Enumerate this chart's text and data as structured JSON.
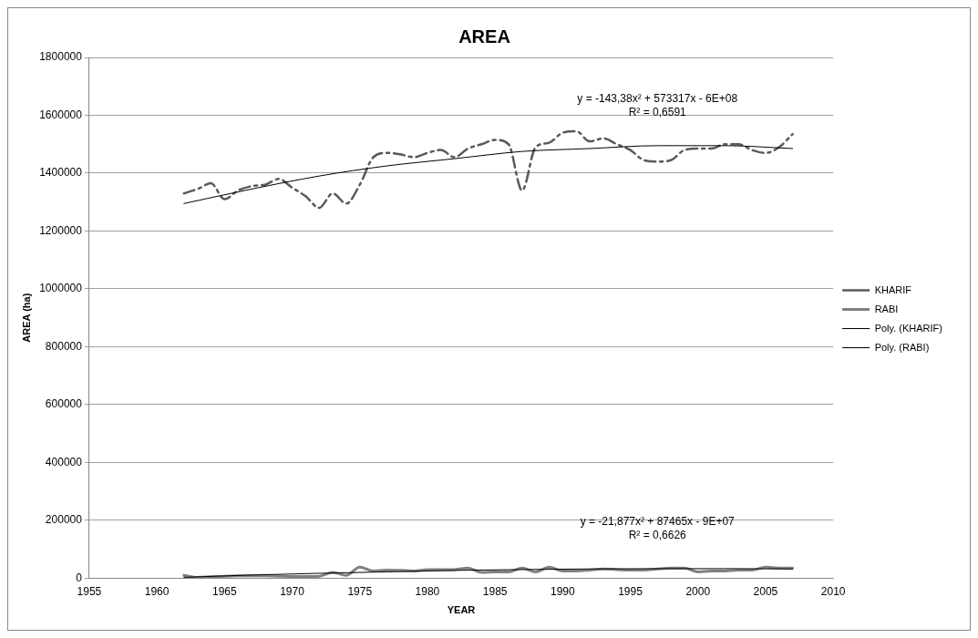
{
  "chart_data": {
    "type": "line",
    "title": "AREA",
    "xlabel": "YEAR",
    "ylabel": "AREA (ha)",
    "xlim": [
      1955,
      2010
    ],
    "xticks": [
      1955,
      1960,
      1965,
      1970,
      1975,
      1980,
      1985,
      1990,
      1995,
      2000,
      2005,
      2010
    ],
    "ylim": [
      0,
      1800000
    ],
    "yticks": [
      0,
      200000,
      400000,
      600000,
      800000,
      1000000,
      1200000,
      1400000,
      1600000,
      1800000
    ],
    "grid": "y",
    "legend": "right",
    "marker": "none",
    "x": [
      1962,
      1963,
      1964,
      1965,
      1966,
      1967,
      1968,
      1969,
      1970,
      1971,
      1972,
      1973,
      1974,
      1975,
      1976,
      1977,
      1978,
      1979,
      1980,
      1981,
      1982,
      1983,
      1984,
      1985,
      1986,
      1987,
      1988,
      1989,
      1990,
      1991,
      1992,
      1993,
      1994,
      1995,
      1996,
      1997,
      1998,
      1999,
      2000,
      2001,
      2002,
      2003,
      2004,
      2005,
      2006,
      2007
    ],
    "series": [
      {
        "name": "KHARIF",
        "color": "#595959",
        "line_style": "dashed",
        "values": [
          1330000,
          1345000,
          1365000,
          1310000,
          1340000,
          1355000,
          1360000,
          1380000,
          1350000,
          1320000,
          1280000,
          1330000,
          1295000,
          1360000,
          1455000,
          1470000,
          1465000,
          1455000,
          1470000,
          1480000,
          1455000,
          1485000,
          1500000,
          1515000,
          1500000,
          1340000,
          1490000,
          1505000,
          1540000,
          1545000,
          1510000,
          1520000,
          1500000,
          1480000,
          1445000,
          1440000,
          1445000,
          1480000,
          1485000,
          1485000,
          1500000,
          1500000,
          1480000,
          1470000,
          1490000,
          1535000
        ]
      },
      {
        "name": "RABI",
        "color": "#808080",
        "line_style": "solid",
        "values": [
          10000,
          3000,
          5000,
          7000,
          8000,
          8000,
          8000,
          7000,
          6000,
          6000,
          7000,
          20000,
          10000,
          38000,
          25000,
          28000,
          27000,
          25000,
          30000,
          30000,
          30000,
          35000,
          20000,
          22000,
          22000,
          35000,
          22000,
          38000,
          25000,
          25000,
          28000,
          32000,
          30000,
          28000,
          28000,
          32000,
          35000,
          35000,
          22000,
          25000,
          25000,
          28000,
          28000,
          38000,
          35000,
          35000
        ]
      },
      {
        "name": "Poly. (KHARIF)",
        "color": "#000000",
        "line_style": "solid",
        "x": [
          1962,
          1967,
          1972,
          1977,
          1982,
          1987,
          1992,
          1997,
          2002,
          2007
        ],
        "values": [
          1295000,
          1345000,
          1390000,
          1425000,
          1450000,
          1475000,
          1485000,
          1495000,
          1495000,
          1485000
        ]
      },
      {
        "name": "Poly. (RABI)",
        "color": "#000000",
        "line_style": "solid",
        "x": [
          1962,
          1967,
          1972,
          1977,
          1982,
          1987,
          1992,
          1997,
          2002,
          2007
        ],
        "values": [
          3000,
          11000,
          17000,
          22000,
          27000,
          30000,
          32000,
          33000,
          33000,
          32000
        ]
      }
    ],
    "annotations": [
      {
        "text": "y = -143,38x² + 573317x - 6E+08\nR² = 0,6591",
        "x": 1997,
        "y": 1495000
      },
      {
        "text": "y = -21,877x² + 87465x - 9E+07\nR² = 0,6626",
        "x": 1997,
        "y": 33000
      }
    ]
  }
}
